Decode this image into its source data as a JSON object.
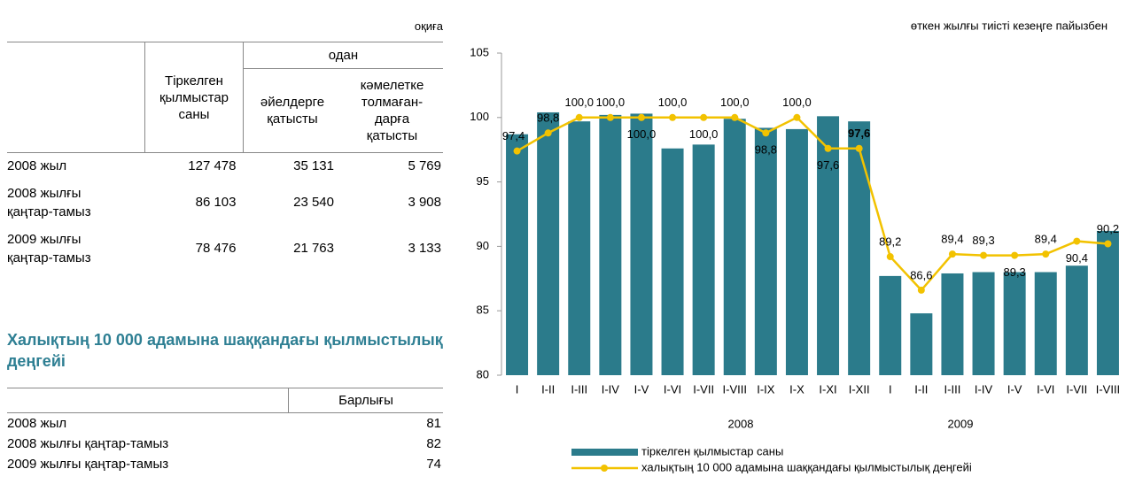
{
  "table1": {
    "unit": "оқиға",
    "header": {
      "total": "Тіркелген қылмыстар саны",
      "of_which": "одан",
      "women": "әйелдерге қатысты",
      "minors": "кәмелетке толмаған-дарға қатысты"
    },
    "rows": [
      [
        "2008 жыл",
        "127 478",
        "35 131",
        "5 769"
      ],
      [
        "2008 жылғы қаңтар-тамыз",
        "86 103",
        "23 540",
        "3 908"
      ],
      [
        "2009 жылғы қаңтар-тамыз",
        "78 476",
        "21 763",
        "3 133"
      ]
    ]
  },
  "section_title": "Халықтың 10 000 адамына шаққандағы қылмыстылық деңгейі",
  "table2": {
    "header": "Барлығы",
    "rows": [
      [
        "2008 жыл",
        "81"
      ],
      [
        "2008 жылғы қаңтар-тамыз",
        "82"
      ],
      [
        "2009 жылғы қаңтар-тамыз",
        "74"
      ]
    ]
  },
  "chart_data": {
    "type": "bar_line",
    "subtitle": "өткен жылғы тиісті кезеңге пайызбен",
    "categories": [
      "I",
      "I-II",
      "I-III",
      "I-IV",
      "I-V",
      "I-VI",
      "I-VII",
      "I-VIII",
      "I-IX",
      "I-X",
      "I-XI",
      "I-XII",
      "I",
      "I-II",
      "I-III",
      "I-IV",
      "I-V",
      "I-VI",
      "I-VII",
      "I-VIII"
    ],
    "group_labels": [
      "2008",
      "2009"
    ],
    "series": [
      {
        "name": "тіркелген қылмыстар саны",
        "type": "bar",
        "color": "#2b7b8b",
        "values": [
          98.7,
          100.4,
          99.7,
          100.2,
          100.3,
          97.6,
          97.9,
          99.9,
          99.2,
          99.1,
          100.1,
          99.7,
          87.7,
          84.8,
          87.9,
          88.0,
          88.0,
          88.0,
          88.5,
          91.2
        ]
      },
      {
        "name": "халықтың 10 000 адамына шаққандағы қылмыстылық деңгейі",
        "type": "line",
        "color": "#f2c200",
        "values": [
          97.4,
          98.8,
          100.0,
          100.0,
          100.0,
          100.0,
          100.0,
          100.0,
          98.8,
          100.0,
          97.6,
          97.6,
          89.2,
          86.6,
          89.4,
          89.3,
          89.3,
          89.4,
          90.4,
          90.2
        ],
        "value_labels": [
          "97,4",
          "98,8",
          "100,0",
          "100,0",
          "100,0",
          "100,0",
          "100,0",
          "100,0",
          "98,8",
          "100,0",
          "97,6",
          "97,6",
          "89,2",
          "86,6",
          "89,4",
          "89,3",
          "89,3",
          "89,4",
          "90,4",
          "90,2"
        ]
      }
    ],
    "ylim": [
      80,
      105
    ],
    "yticks": [
      80,
      85,
      90,
      95,
      100,
      105
    ],
    "grid": false,
    "legend": "bottom"
  }
}
